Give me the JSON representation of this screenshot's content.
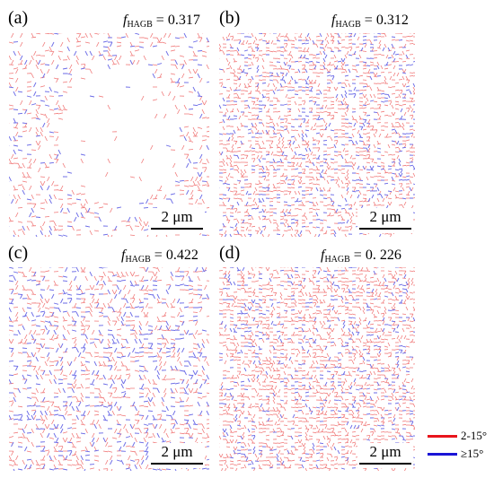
{
  "panels": [
    {
      "label": "(a)",
      "frac_symbol": "f",
      "frac_sub": "HAGB",
      "frac_value": " = 0.317",
      "scale_label": "2 μm"
    },
    {
      "label": "(b)",
      "frac_symbol": "f",
      "frac_sub": "HAGB",
      "frac_value": " = 0.312",
      "scale_label": "2 μm"
    },
    {
      "label": "(c)",
      "frac_symbol": "f",
      "frac_sub": "HAGB",
      "frac_value": " = 0.422",
      "scale_label": "2 μm"
    },
    {
      "label": "(d)",
      "frac_symbol": "f",
      "frac_sub": "HAGB",
      "frac_value": " = 0. 226",
      "scale_label": "2 μm"
    }
  ],
  "legend": [
    {
      "label": "2-15°",
      "color": "#e8141c"
    },
    {
      "label": "≥15°",
      "color": "#1a14d6"
    }
  ],
  "colors": {
    "low_angle": "#f07878",
    "high_angle": "#6a6ae6"
  }
}
